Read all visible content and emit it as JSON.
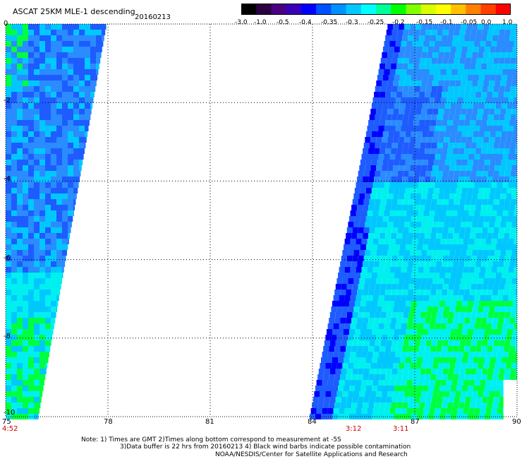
{
  "header": {
    "title": "ASCAT 25KM MLE-1 descending",
    "date": "20160213"
  },
  "colorbar": {
    "labels": [
      "-3.0",
      "-1.0",
      "-0.5",
      "-0.4",
      "-0.35",
      "-0.3",
      "-0.25",
      "-0.2",
      "-0.15",
      "-0.1",
      "-0.05",
      "0.0",
      "1.0"
    ],
    "colors": [
      "#000000",
      "#2a0040",
      "#4b0082",
      "#3a00b8",
      "#0000ff",
      "#0050ff",
      "#0090ff",
      "#00c8ff",
      "#00ffff",
      "#00ff99",
      "#00ff00",
      "#80ff00",
      "#d8ff00",
      "#ffff00",
      "#ffc000",
      "#ff8000",
      "#ff4000",
      "#ff0000"
    ]
  },
  "axes": {
    "x_ticks": [
      "75",
      "78",
      "81",
      "84",
      "87",
      "90"
    ],
    "y_ticks": [
      "0",
      "-2",
      "-4",
      "-6",
      "-8",
      "-10"
    ],
    "lon_range": [
      75,
      90
    ],
    "lat_range": [
      -10,
      0
    ]
  },
  "time_labels": [
    {
      "text": "4:52",
      "lon": 75
    },
    {
      "text": "3:12",
      "lon": 86.3
    },
    {
      "text": "3:11",
      "lon": 86.5
    }
  ],
  "footer": {
    "line1": "Note: 1) Times are GMT 2)Times along bottom correspond to measurement at -5S",
    "line2": "3)Data buffer is 22 hrs from 20160213 4) Black wind barbs indicate possible contamination",
    "line3": "NOAA/NESDIS/Center for Satellite Applications and Research"
  },
  "colors": {
    "deep_blue": "#0000ff",
    "blue": "#1e5cff",
    "mid_blue": "#2a8cff",
    "light_blue": "#00c8ff",
    "cyan": "#00f0f0",
    "green": "#00ff40"
  }
}
